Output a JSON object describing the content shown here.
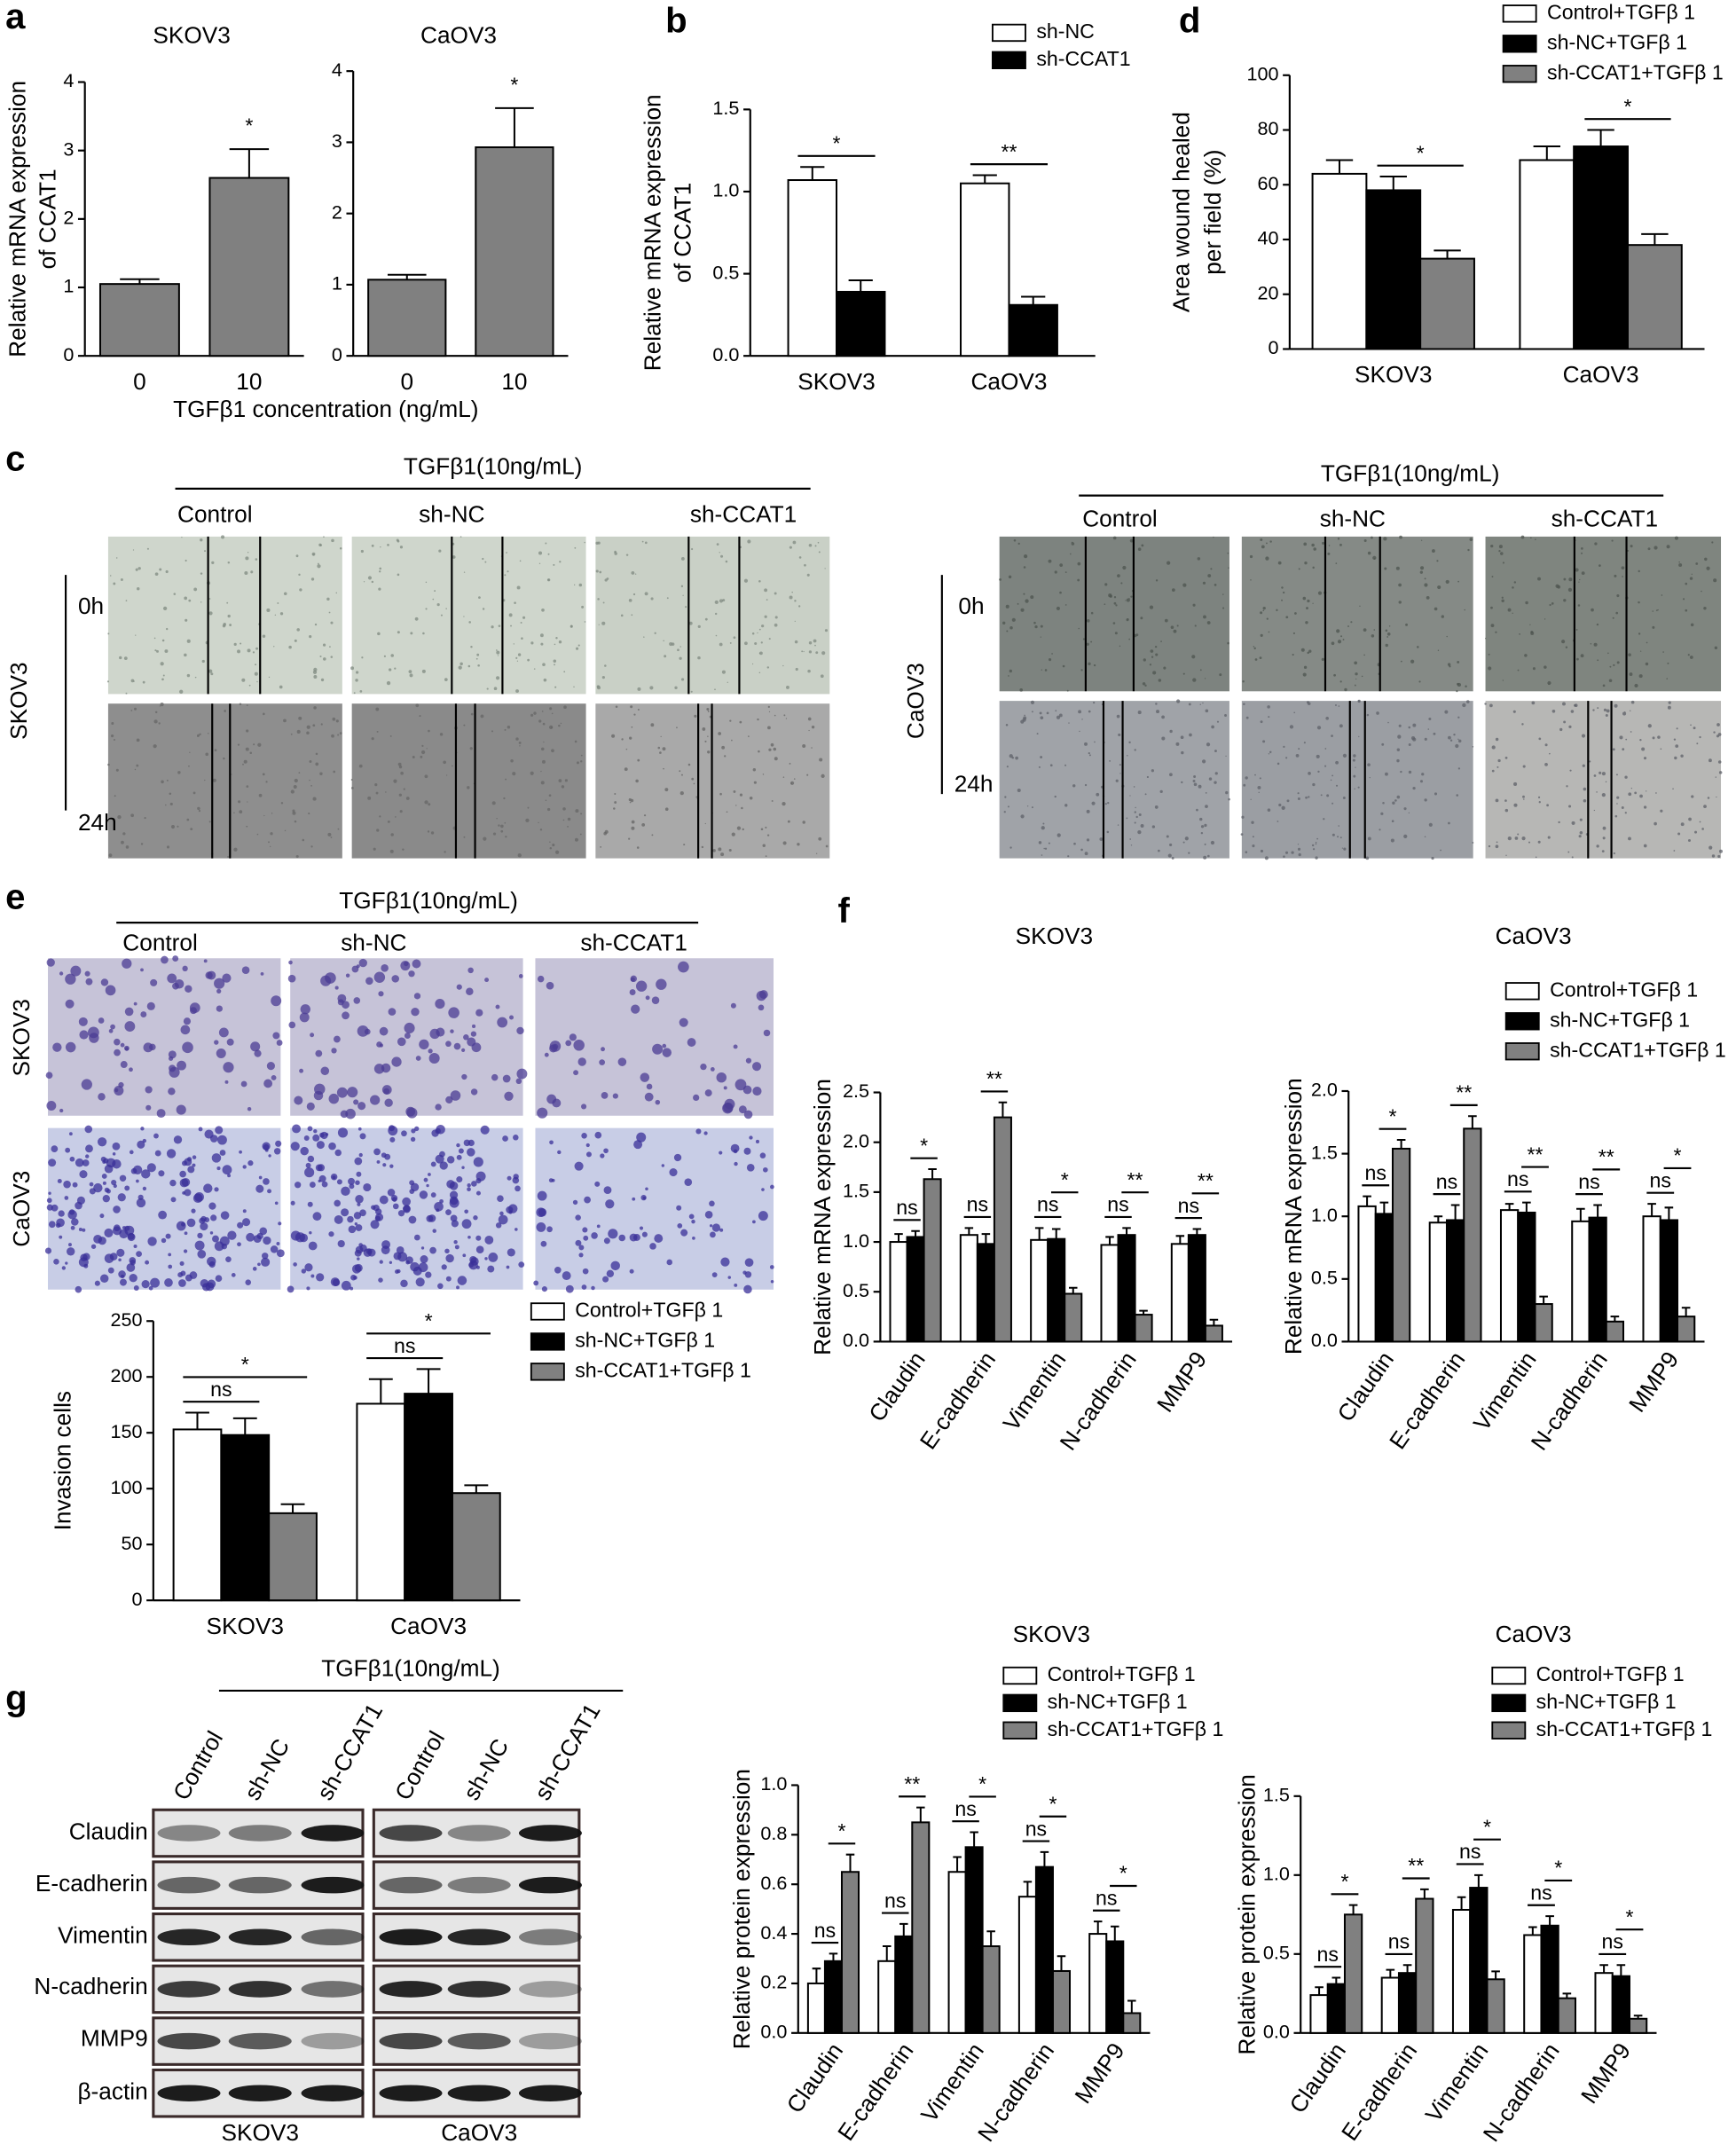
{
  "figure": {
    "panel_labels": [
      "a",
      "b",
      "c",
      "d",
      "e",
      "f",
      "g"
    ],
    "wound": {
      "treatment": "TGFβ1(10ng/mL)",
      "groups": [
        "Control",
        "sh-NC",
        "sh-CCAT1"
      ],
      "times": [
        "0h",
        "24h"
      ],
      "cell_lines": [
        "SKOV3",
        "CaOV3"
      ]
    },
    "invasion": {
      "treatment": "TGFβ1(10ng/mL)",
      "groups": [
        "Control",
        "sh-NC",
        "sh-CCAT1"
      ],
      "cell_lines": [
        "SKOV3",
        "CaOV3"
      ]
    },
    "blot": {
      "treatment": "TGFβ1(10ng/mL)",
      "groups": [
        "Control",
        "sh-NC",
        "sh-CCAT1"
      ],
      "proteins": [
        "Claudin",
        "E-cadherin",
        "Vimentin",
        "N-cadherin",
        "MMP9",
        "β-actin"
      ],
      "cell_lines": [
        "SKOV3",
        "CaOV3"
      ]
    }
  },
  "chart_data": [
    {
      "type": "bar",
      "title": "SKOV3",
      "ylabel": [
        "Relative mRNA expression",
        "of CCAT1"
      ],
      "xlabel": "TGFβ1 concentration (ng/mL)",
      "categories": [
        "0",
        "10"
      ],
      "series": [
        {
          "color": "#808080",
          "values": [
            1.05,
            2.6
          ],
          "errors": [
            0.07,
            0.42
          ]
        }
      ],
      "ylim": [
        0,
        4
      ],
      "yticks": [
        0,
        1,
        2,
        3,
        4
      ],
      "comparisons": [
        {
          "label": "*",
          "category": 1,
          "from": 0,
          "to": 0
        }
      ]
    },
    {
      "type": "bar",
      "title": "CaOV3",
      "categories": [
        "0",
        "10"
      ],
      "series": [
        {
          "color": "#808080",
          "values": [
            1.07,
            2.93
          ],
          "errors": [
            0.07,
            0.55
          ]
        }
      ],
      "ylim": [
        0,
        4
      ],
      "yticks": [
        0,
        1,
        2,
        3,
        4
      ],
      "comparisons": [
        {
          "label": "*",
          "category": 1,
          "from": 0,
          "to": 0
        }
      ]
    },
    {
      "type": "bar",
      "ylabel": [
        "Relative mRNA expression",
        "of CCAT1"
      ],
      "categories": [
        "SKOV3",
        "CaOV3"
      ],
      "series": [
        {
          "name": "sh-NC",
          "color": "#ffffff",
          "values": [
            1.07,
            1.05
          ],
          "errors": [
            0.08,
            0.05
          ]
        },
        {
          "name": "sh-CCAT1",
          "color": "#000000",
          "values": [
            0.39,
            0.31
          ],
          "errors": [
            0.07,
            0.05
          ]
        }
      ],
      "ylim": [
        0,
        1.5
      ],
      "yticks": [
        {
          "value": 0,
          "label": "0.0"
        },
        0.5,
        {
          "value": 1,
          "label": "1.0"
        },
        1.5
      ],
      "comparisons": [
        {
          "label": "*",
          "category": 0,
          "from": 0,
          "to": 1
        },
        {
          "label": "**",
          "category": 1,
          "from": 0,
          "to": 1
        }
      ]
    },
    {
      "type": "bar",
      "ylabel": [
        "Area wound healed",
        "per field (%)"
      ],
      "categories": [
        "SKOV3",
        "CaOV3"
      ],
      "series": [
        {
          "name": "Control+TGFβ 1",
          "color": "#ffffff",
          "values": [
            64,
            69
          ],
          "errors": [
            5,
            5
          ]
        },
        {
          "name": "sh-NC+TGFβ 1",
          "color": "#000000",
          "values": [
            58,
            74
          ],
          "errors": [
            5,
            6
          ]
        },
        {
          "name": "sh-CCAT1+TGFβ 1",
          "color": "#808080",
          "values": [
            33,
            38
          ],
          "errors": [
            3,
            4
          ]
        }
      ],
      "ylim": [
        0,
        100
      ],
      "yticks": [
        0,
        20,
        40,
        60,
        80,
        100
      ],
      "comparisons": [
        {
          "label": "*",
          "category": 0,
          "from": 1,
          "to": 2
        },
        {
          "label": "*",
          "category": 1,
          "from": 1,
          "to": 2
        }
      ]
    },
    {
      "type": "bar",
      "ylabel": [
        "Invasion cells"
      ],
      "categories": [
        "SKOV3",
        "CaOV3"
      ],
      "series": [
        {
          "name": "Control+TGFβ 1",
          "color": "#ffffff",
          "values": [
            153,
            176
          ],
          "errors": [
            15,
            22
          ]
        },
        {
          "name": "sh-NC+TGFβ 1",
          "color": "#000000",
          "values": [
            148,
            185
          ],
          "errors": [
            15,
            22
          ]
        },
        {
          "name": "sh-CCAT1+TGFβ 1",
          "color": "#808080",
          "values": [
            78,
            96
          ],
          "errors": [
            8,
            7
          ]
        }
      ],
      "ylim": [
        0,
        250
      ],
      "yticks": [
        0,
        50,
        100,
        150,
        200,
        250
      ],
      "comparisons": [
        {
          "label": "ns",
          "category": 0,
          "from": 0,
          "to": 1
        },
        {
          "label": "*",
          "category": 0,
          "from": 0,
          "to": 2
        },
        {
          "label": "ns",
          "category": 1,
          "from": 0,
          "to": 1
        },
        {
          "label": "*",
          "category": 1,
          "from": 0,
          "to": 2
        }
      ]
    },
    {
      "type": "bar",
      "title": "SKOV3",
      "ylabel": [
        "Relative mRNA expression"
      ],
      "categories": [
        "Claudin",
        "E-cadherin",
        "Vimentin",
        "N-cadherin",
        "MMP9"
      ],
      "series": [
        {
          "color": "#ffffff",
          "values": [
            1.0,
            1.07,
            1.02,
            0.97,
            0.98
          ],
          "errors": [
            0.08,
            0.07,
            0.12,
            0.08,
            0.08
          ]
        },
        {
          "color": "#000000",
          "values": [
            1.05,
            0.98,
            1.03,
            1.07,
            1.07
          ],
          "errors": [
            0.06,
            0.1,
            0.1,
            0.07,
            0.06
          ]
        },
        {
          "color": "#808080",
          "values": [
            1.63,
            2.25,
            0.48,
            0.27,
            0.16
          ],
          "errors": [
            0.1,
            0.15,
            0.06,
            0.04,
            0.06
          ]
        }
      ],
      "ylim": [
        0,
        2.5
      ],
      "yticks": [
        {
          "value": 0,
          "label": "0.0"
        },
        0.5,
        {
          "value": 1,
          "label": "1.0"
        },
        1.5,
        {
          "value": 2,
          "label": "2.0"
        },
        2.5
      ],
      "comparisons": [
        {
          "label": "ns",
          "category": 0,
          "from": 0,
          "to": 1
        },
        {
          "label": "*",
          "category": 0,
          "from": 1,
          "to": 2
        },
        {
          "label": "ns",
          "category": 1,
          "from": 0,
          "to": 1
        },
        {
          "label": "**",
          "category": 1,
          "from": 1,
          "to": 2
        },
        {
          "label": "ns",
          "category": 2,
          "from": 0,
          "to": 1
        },
        {
          "label": "*",
          "category": 2,
          "from": 1,
          "to": 2
        },
        {
          "label": "ns",
          "category": 3,
          "from": 0,
          "to": 1
        },
        {
          "label": "**",
          "category": 3,
          "from": 1,
          "to": 2
        },
        {
          "label": "ns",
          "category": 4,
          "from": 0,
          "to": 1
        },
        {
          "label": "**",
          "category": 4,
          "from": 1,
          "to": 2
        }
      ]
    },
    {
      "type": "bar",
      "title": "CaOV3",
      "ylabel": [
        "Relative mRNA expression"
      ],
      "categories": [
        "Claudin",
        "E-cadherin",
        "Vimentin",
        "N-cadherin",
        "MMP9"
      ],
      "series": [
        {
          "name": "Control+TGFβ 1",
          "color": "#ffffff",
          "values": [
            1.08,
            0.95,
            1.05,
            0.96,
            1.0
          ],
          "errors": [
            0.08,
            0.05,
            0.05,
            0.1,
            0.1
          ]
        },
        {
          "name": "sh-NC+TGFβ 1",
          "color": "#000000",
          "values": [
            1.02,
            0.97,
            1.03,
            0.99,
            0.97
          ],
          "errors": [
            0.09,
            0.12,
            0.08,
            0.1,
            0.1
          ]
        },
        {
          "name": "sh-CCAT1+TGFβ 1",
          "color": "#808080",
          "values": [
            1.54,
            1.7,
            0.3,
            0.16,
            0.2
          ],
          "errors": [
            0.07,
            0.1,
            0.06,
            0.04,
            0.07
          ]
        }
      ],
      "ylim": [
        0,
        2
      ],
      "yticks": [
        {
          "value": 0,
          "label": "0.0"
        },
        0.5,
        {
          "value": 1,
          "label": "1.0"
        },
        1.5,
        {
          "value": 2,
          "label": "2.0"
        }
      ],
      "comparisons": [
        {
          "label": "ns",
          "category": 0,
          "from": 0,
          "to": 1
        },
        {
          "label": "*",
          "category": 0,
          "from": 1,
          "to": 2
        },
        {
          "label": "ns",
          "category": 1,
          "from": 0,
          "to": 1
        },
        {
          "label": "**",
          "category": 1,
          "from": 1,
          "to": 2
        },
        {
          "label": "ns",
          "category": 2,
          "from": 0,
          "to": 1
        },
        {
          "label": "**",
          "category": 2,
          "from": 1,
          "to": 2
        },
        {
          "label": "ns",
          "category": 3,
          "from": 0,
          "to": 1
        },
        {
          "label": "**",
          "category": 3,
          "from": 1,
          "to": 2
        },
        {
          "label": "ns",
          "category": 4,
          "from": 0,
          "to": 1
        },
        {
          "label": "*",
          "category": 4,
          "from": 1,
          "to": 2
        }
      ]
    },
    {
      "type": "bar",
      "title": "SKOV3",
      "ylabel": [
        "Relative protein expression"
      ],
      "categories": [
        "Claudin",
        "E-cadherin",
        "Vimentin",
        "N-cadherin",
        "MMP9"
      ],
      "series": [
        {
          "name": "Control+TGFβ 1",
          "color": "#ffffff",
          "values": [
            0.2,
            0.29,
            0.65,
            0.55,
            0.4
          ],
          "errors": [
            0.06,
            0.06,
            0.06,
            0.06,
            0.05
          ]
        },
        {
          "name": "sh-NC+TGFβ 1",
          "color": "#000000",
          "values": [
            0.29,
            0.39,
            0.75,
            0.67,
            0.37
          ],
          "errors": [
            0.03,
            0.05,
            0.06,
            0.06,
            0.06
          ]
        },
        {
          "name": "sh-CCAT1+TGFβ 1",
          "color": "#808080",
          "values": [
            0.65,
            0.85,
            0.35,
            0.25,
            0.08
          ],
          "errors": [
            0.07,
            0.06,
            0.06,
            0.06,
            0.05
          ]
        }
      ],
      "ylim": [
        0,
        1
      ],
      "yticks": [
        {
          "value": 0,
          "label": "0.0"
        },
        0.2,
        0.4,
        0.6,
        0.8,
        {
          "value": 1,
          "label": "1.0"
        }
      ],
      "comparisons": [
        {
          "label": "ns",
          "category": 0,
          "from": 0,
          "to": 1
        },
        {
          "label": "*",
          "category": 0,
          "from": 1,
          "to": 2
        },
        {
          "label": "ns",
          "category": 1,
          "from": 0,
          "to": 1
        },
        {
          "label": "**",
          "category": 1,
          "from": 1,
          "to": 2
        },
        {
          "label": "ns",
          "category": 2,
          "from": 0,
          "to": 1
        },
        {
          "label": "*",
          "category": 2,
          "from": 1,
          "to": 2
        },
        {
          "label": "ns",
          "category": 3,
          "from": 0,
          "to": 1
        },
        {
          "label": "*",
          "category": 3,
          "from": 1,
          "to": 2
        },
        {
          "label": "ns",
          "category": 4,
          "from": 0,
          "to": 1
        },
        {
          "label": "*",
          "category": 4,
          "from": 1,
          "to": 2
        }
      ]
    },
    {
      "type": "bar",
      "title": "CaOV3",
      "ylabel": [
        "Relative protein expression"
      ],
      "categories": [
        "Claudin",
        "E-cadherin",
        "Vimentin",
        "N-cadherin",
        "MMP9"
      ],
      "series": [
        {
          "name": "Control+TGFβ 1",
          "color": "#ffffff",
          "values": [
            0.24,
            0.35,
            0.78,
            0.62,
            0.38
          ],
          "errors": [
            0.05,
            0.05,
            0.08,
            0.05,
            0.05
          ]
        },
        {
          "name": "sh-NC+TGFβ 1",
          "color": "#000000",
          "values": [
            0.31,
            0.38,
            0.92,
            0.68,
            0.36
          ],
          "errors": [
            0.04,
            0.05,
            0.08,
            0.06,
            0.07
          ]
        },
        {
          "name": "sh-CCAT1+TGFβ 1",
          "color": "#808080",
          "values": [
            0.75,
            0.85,
            0.34,
            0.22,
            0.09
          ],
          "errors": [
            0.06,
            0.06,
            0.05,
            0.03,
            0.02
          ]
        }
      ],
      "ylim": [
        0,
        1.5
      ],
      "yticks": [
        {
          "value": 0,
          "label": "0.0"
        },
        0.5,
        {
          "value": 1,
          "label": "1.0"
        },
        1.5
      ],
      "comparisons": [
        {
          "label": "ns",
          "category": 0,
          "from": 0,
          "to": 1
        },
        {
          "label": "*",
          "category": 0,
          "from": 1,
          "to": 2
        },
        {
          "label": "ns",
          "category": 1,
          "from": 0,
          "to": 1
        },
        {
          "label": "**",
          "category": 1,
          "from": 1,
          "to": 2
        },
        {
          "label": "ns",
          "category": 2,
          "from": 0,
          "to": 1
        },
        {
          "label": "*",
          "category": 2,
          "from": 1,
          "to": 2
        },
        {
          "label": "ns",
          "category": 3,
          "from": 0,
          "to": 1
        },
        {
          "label": "*",
          "category": 3,
          "from": 1,
          "to": 2
        },
        {
          "label": "ns",
          "category": 4,
          "from": 0,
          "to": 1
        },
        {
          "label": "*",
          "category": 4,
          "from": 1,
          "to": 2
        }
      ]
    }
  ]
}
